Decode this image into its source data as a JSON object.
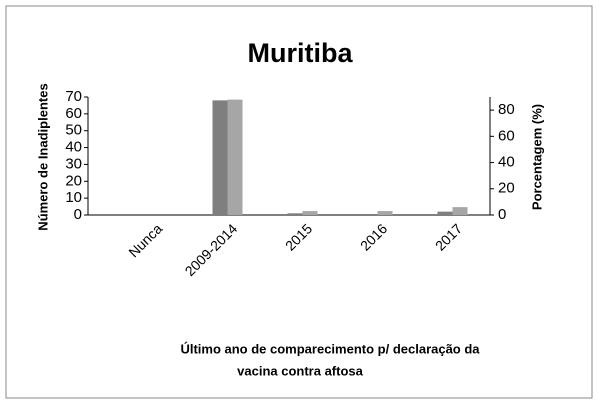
{
  "chart_data": {
    "type": "bar",
    "title": "Muritiba",
    "y_label": "Número de Inadiplentes",
    "y2_label": "Porcentagem (%)",
    "x_label": [
      "Último ano de comparecimento p/ declaração  da",
      "vacina contra aftosa"
    ],
    "categories": [
      "Nunca",
      "2009-2014",
      "2015",
      "2016",
      "2017"
    ],
    "series": [
      {
        "color": "#7f7f7f",
        "values": [
          0,
          68,
          1,
          0,
          2
        ]
      },
      {
        "color": "#a6a6a6",
        "axis": "y2",
        "values": [
          0,
          88,
          3,
          3,
          6
        ]
      }
    ],
    "ylim": [
      0,
      70
    ],
    "yticks": [
      0,
      10,
      20,
      30,
      40,
      50,
      60,
      70
    ],
    "y2lim": [
      0,
      90
    ],
    "y2ticks": [
      0,
      20,
      40,
      60,
      80
    ]
  }
}
